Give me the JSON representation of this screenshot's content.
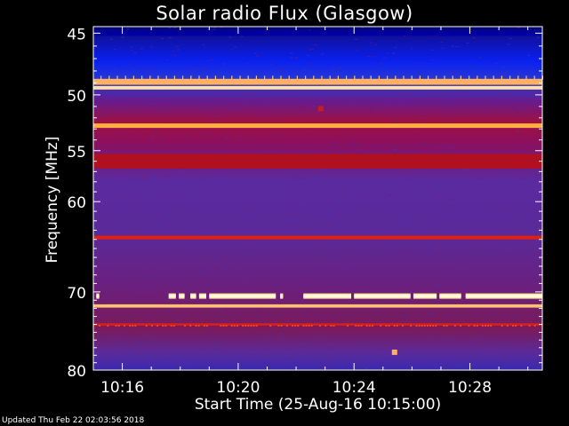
{
  "chart_data": {
    "type": "heatmap",
    "title": "Solar radio Flux (Glasgow)",
    "xlabel": "Start Time (25-Aug-16 10:15:00)",
    "ylabel": "Frequency [MHz]",
    "x_tick_labels": [
      "10:16",
      "10:20",
      "10:24",
      "10:28"
    ],
    "x_tick_minutes": [
      16,
      20,
      24,
      28
    ],
    "xlim_minutes": [
      15,
      30.5
    ],
    "y_tick_labels": [
      "45",
      "50",
      "55",
      "60",
      "70",
      "80"
    ],
    "y_tick_values": [
      45,
      50,
      55,
      60,
      70,
      80
    ],
    "ylim": [
      44.5,
      80
    ],
    "colormap": [
      "#000080",
      "#2020c0",
      "#4a2a9a",
      "#7a1a6a",
      "#c01020",
      "#e83010",
      "#ffa040",
      "#ffffc0"
    ],
    "bands": [
      {
        "freq": 45.0,
        "width": 0.4,
        "color": "#0000a0"
      },
      {
        "freq": 48.9,
        "width": 0.5,
        "color": "#ffb060"
      },
      {
        "freq": 49.4,
        "width": 0.3,
        "color": "#ffe0a0"
      },
      {
        "freq": 52.7,
        "width": 0.4,
        "color": "#ffb040"
      },
      {
        "freq": 56.0,
        "width": 1.4,
        "color": "#b01020"
      },
      {
        "freq": 63.8,
        "width": 0.4,
        "color": "#e02010"
      },
      {
        "freq": 71.7,
        "width": 0.4,
        "color": "#ffc070"
      },
      {
        "freq": 74.0,
        "width": 0.3,
        "color": "#d02020"
      }
    ],
    "bursts_70_5MHz": [
      {
        "start": 15.1,
        "end": 15.2
      },
      {
        "start": 17.6,
        "end": 17.85
      },
      {
        "start": 17.95,
        "end": 18.15
      },
      {
        "start": 18.35,
        "end": 18.55
      },
      {
        "start": 18.65,
        "end": 18.9
      },
      {
        "start": 19.0,
        "end": 21.3
      },
      {
        "start": 21.45,
        "end": 21.55
      },
      {
        "start": 22.25,
        "end": 23.9
      },
      {
        "start": 24.0,
        "end": 25.95
      },
      {
        "start": 26.05,
        "end": 26.85
      },
      {
        "start": 26.95,
        "end": 27.7
      },
      {
        "start": 27.85,
        "end": 30.5
      }
    ],
    "spots": [
      {
        "t": 22.85,
        "freq": 51.2,
        "color": "#c02020"
      },
      {
        "t": 25.4,
        "freq": 77.6,
        "color": "#ffb060"
      }
    ]
  },
  "footer": "Updated Thu Feb 22 02:03:56 2018"
}
